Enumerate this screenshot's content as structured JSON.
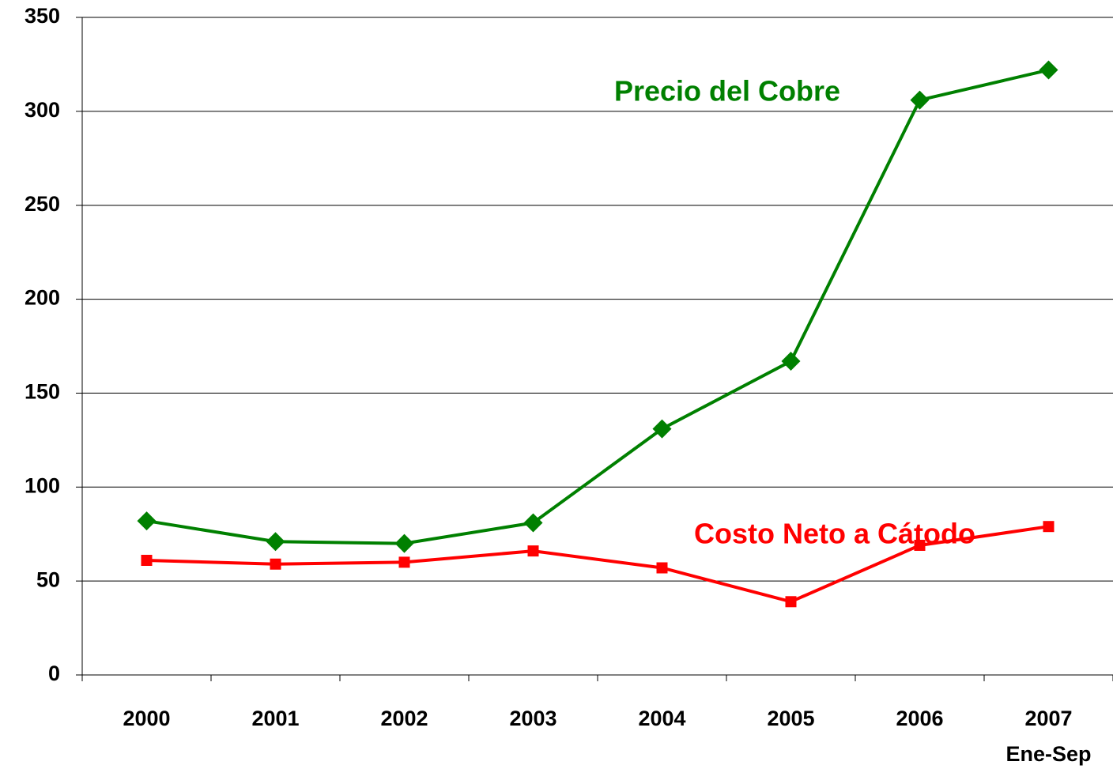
{
  "chart_data": {
    "type": "line",
    "categories": [
      "2000",
      "2001",
      "2002",
      "2003",
      "2004",
      "2005",
      "2006",
      "2007"
    ],
    "category_sublabel": "Ene-Sep",
    "series": [
      {
        "name": "Precio del Cobre",
        "color": "#008000",
        "marker": "diamond",
        "values": [
          82,
          71,
          70,
          81,
          131,
          167,
          306,
          322
        ]
      },
      {
        "name": "Costo Neto a Cátodo",
        "color": "#ff0000",
        "marker": "square",
        "values": [
          61,
          59,
          60,
          66,
          57,
          39,
          69,
          79
        ]
      }
    ],
    "ylim": [
      0,
      350
    ],
    "yticks": [
      0,
      50,
      100,
      150,
      200,
      250,
      300,
      350
    ],
    "grid": true
  }
}
